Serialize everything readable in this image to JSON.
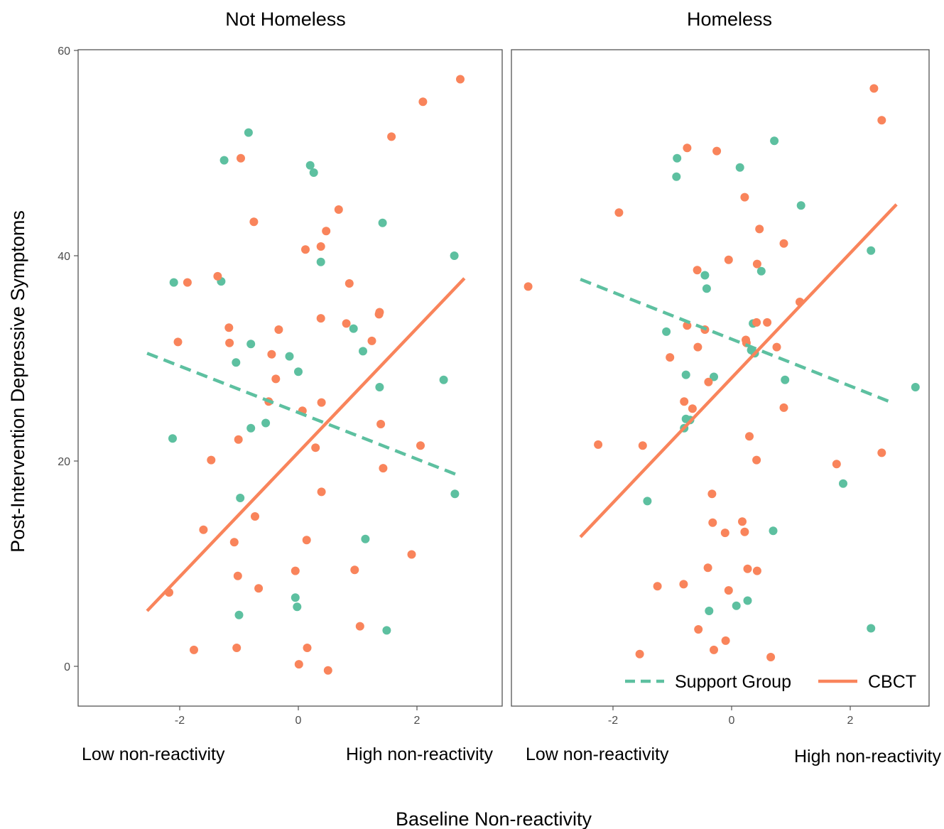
{
  "figure": {
    "ylabel": "Post-Intervention  Depressive Symptoms",
    "xlabel": "Baseline Non-reactivity"
  },
  "colors": {
    "support_group": "#5dc0a0",
    "cbct": "#f9845b"
  },
  "legend": {
    "items": [
      "Support Group",
      "CBCT"
    ],
    "position": "bottom-right (inside Homeless panel)"
  },
  "chart_data": [
    {
      "type": "scatter",
      "panel": "Not Homeless",
      "title": "Not Homeless",
      "xlim": [
        -3.7,
        3.3
      ],
      "ylim": [
        -3.5,
        60.2
      ],
      "xticks": [
        -2,
        0,
        2
      ],
      "xtick_labels": [
        "-2",
        "0",
        "2"
      ],
      "yticks": [
        0,
        20,
        40,
        60
      ],
      "ytick_labels": [
        "0",
        "20",
        "40",
        "60"
      ],
      "x_annotations": [
        "Low non-reactivity",
        "High non-reactivity"
      ],
      "grid": false,
      "series": [
        {
          "name": "Support Group",
          "points": [
            [
              -0.84,
              52.0
            ],
            [
              -1.25,
              49.3
            ],
            [
              0.2,
              48.8
            ],
            [
              0.26,
              48.1
            ],
            [
              1.42,
              43.2
            ],
            [
              2.63,
              40.0
            ],
            [
              0.38,
              39.4
            ],
            [
              -2.1,
              37.4
            ],
            [
              -1.3,
              37.5
            ],
            [
              0.93,
              32.9
            ],
            [
              -0.8,
              31.4
            ],
            [
              1.09,
              30.7
            ],
            [
              -0.15,
              30.2
            ],
            [
              -1.05,
              29.6
            ],
            [
              0.0,
              28.7
            ],
            [
              2.45,
              27.9
            ],
            [
              1.37,
              27.2
            ],
            [
              -0.55,
              23.7
            ],
            [
              -0.8,
              23.2
            ],
            [
              -2.12,
              22.2
            ],
            [
              -0.98,
              16.4
            ],
            [
              2.64,
              16.8
            ],
            [
              1.13,
              12.4
            ],
            [
              -0.05,
              6.7
            ],
            [
              -0.02,
              5.8
            ],
            [
              -1.0,
              5.0
            ],
            [
              1.49,
              3.5
            ]
          ],
          "trend": {
            "style": "dashed",
            "x": [
              -2.55,
              2.7
            ],
            "y": [
              30.5,
              18.6
            ]
          }
        },
        {
          "name": "CBCT",
          "points": [
            [
              2.73,
              57.2
            ],
            [
              2.1,
              55.0
            ],
            [
              1.57,
              51.6
            ],
            [
              -0.97,
              49.5
            ],
            [
              0.68,
              44.5
            ],
            [
              -0.75,
              43.3
            ],
            [
              0.47,
              42.4
            ],
            [
              0.12,
              40.6
            ],
            [
              0.38,
              40.9
            ],
            [
              -1.36,
              38.0
            ],
            [
              -1.87,
              37.4
            ],
            [
              0.86,
              37.3
            ],
            [
              1.37,
              34.5
            ],
            [
              1.36,
              34.3
            ],
            [
              0.38,
              33.9
            ],
            [
              0.81,
              33.4
            ],
            [
              -1.17,
              33.0
            ],
            [
              -0.33,
              32.8
            ],
            [
              1.24,
              31.7
            ],
            [
              -2.03,
              31.6
            ],
            [
              -1.16,
              31.5
            ],
            [
              -0.45,
              30.4
            ],
            [
              -0.38,
              28.0
            ],
            [
              -0.5,
              25.8
            ],
            [
              0.39,
              25.7
            ],
            [
              0.07,
              24.9
            ],
            [
              1.39,
              23.6
            ],
            [
              -1.01,
              22.1
            ],
            [
              0.29,
              21.3
            ],
            [
              2.06,
              21.5
            ],
            [
              -1.47,
              20.1
            ],
            [
              1.43,
              19.3
            ],
            [
              0.39,
              17.0
            ],
            [
              -0.73,
              14.6
            ],
            [
              -1.6,
              13.3
            ],
            [
              -1.08,
              12.1
            ],
            [
              0.14,
              12.3
            ],
            [
              1.91,
              10.9
            ],
            [
              -1.02,
              8.8
            ],
            [
              -0.05,
              9.3
            ],
            [
              0.95,
              9.4
            ],
            [
              -0.67,
              7.6
            ],
            [
              -2.18,
              7.2
            ],
            [
              1.04,
              3.9
            ],
            [
              -1.76,
              1.6
            ],
            [
              -1.04,
              1.8
            ],
            [
              0.15,
              1.8
            ],
            [
              0.01,
              0.2
            ],
            [
              0.5,
              -0.4
            ]
          ],
          "trend": {
            "style": "solid",
            "x": [
              -2.55,
              2.8
            ],
            "y": [
              5.4,
              37.8
            ]
          }
        }
      ]
    },
    {
      "type": "scatter",
      "panel": "Homeless",
      "title": "Homeless",
      "xlim": [
        -3.7,
        3.3
      ],
      "ylim": [
        -3.5,
        60.2
      ],
      "xticks": [
        -2,
        0,
        2
      ],
      "xtick_labels": [
        "-2",
        "0",
        "2"
      ],
      "yticks": [
        0,
        20,
        40,
        60
      ],
      "x_annotations": [
        "Low non-reactivity",
        "High non-reactivity"
      ],
      "grid": false,
      "series": [
        {
          "name": "Support Group",
          "points": [
            [
              0.72,
              51.2
            ],
            [
              -0.92,
              49.5
            ],
            [
              -0.93,
              47.7
            ],
            [
              0.14,
              48.6
            ],
            [
              1.17,
              44.9
            ],
            [
              2.35,
              40.5
            ],
            [
              0.5,
              38.5
            ],
            [
              -0.45,
              38.1
            ],
            [
              -0.42,
              36.8
            ],
            [
              0.36,
              33.4
            ],
            [
              -1.1,
              32.6
            ],
            [
              0.33,
              30.8
            ],
            [
              0.39,
              30.5
            ],
            [
              -0.77,
              28.4
            ],
            [
              -0.3,
              28.2
            ],
            [
              0.9,
              27.9
            ],
            [
              3.1,
              27.2
            ],
            [
              -0.7,
              24.0
            ],
            [
              -0.77,
              24.1
            ],
            [
              -0.8,
              23.2
            ],
            [
              1.88,
              17.8
            ],
            [
              -1.42,
              16.1
            ],
            [
              0.7,
              13.2
            ],
            [
              0.27,
              6.4
            ],
            [
              -0.38,
              5.4
            ],
            [
              0.08,
              5.9
            ],
            [
              2.35,
              3.7
            ]
          ],
          "trend": {
            "style": "dashed",
            "x": [
              -2.55,
              2.7
            ],
            "y": [
              37.7,
              25.7
            ]
          }
        },
        {
          "name": "CBCT",
          "points": [
            [
              2.4,
              56.3
            ],
            [
              2.53,
              53.2
            ],
            [
              -0.75,
              50.5
            ],
            [
              -0.25,
              50.2
            ],
            [
              0.22,
              45.7
            ],
            [
              -1.9,
              44.2
            ],
            [
              0.47,
              42.6
            ],
            [
              0.88,
              41.2
            ],
            [
              -0.05,
              39.6
            ],
            [
              0.43,
              39.2
            ],
            [
              -0.58,
              38.6
            ],
            [
              -3.43,
              37.0
            ],
            [
              1.15,
              35.5
            ],
            [
              0.42,
              33.5
            ],
            [
              0.6,
              33.5
            ],
            [
              -0.75,
              33.2
            ],
            [
              -0.45,
              32.8
            ],
            [
              0.24,
              31.8
            ],
            [
              0.25,
              31.5
            ],
            [
              -0.57,
              31.1
            ],
            [
              0.76,
              31.1
            ],
            [
              -1.04,
              30.1
            ],
            [
              -0.39,
              27.7
            ],
            [
              -0.8,
              25.8
            ],
            [
              -0.66,
              25.1
            ],
            [
              0.88,
              25.2
            ],
            [
              0.3,
              22.4
            ],
            [
              -2.25,
              21.6
            ],
            [
              -1.5,
              21.5
            ],
            [
              2.53,
              20.8
            ],
            [
              0.42,
              20.1
            ],
            [
              1.77,
              19.7
            ],
            [
              -0.33,
              16.8
            ],
            [
              -0.32,
              14.0
            ],
            [
              0.18,
              14.1
            ],
            [
              -0.11,
              13.0
            ],
            [
              0.22,
              13.1
            ],
            [
              -0.4,
              9.6
            ],
            [
              0.27,
              9.5
            ],
            [
              0.43,
              9.3
            ],
            [
              -1.25,
              7.8
            ],
            [
              -0.81,
              8.0
            ],
            [
              -0.05,
              7.4
            ],
            [
              -0.56,
              3.6
            ],
            [
              -0.1,
              2.5
            ],
            [
              -0.3,
              1.6
            ],
            [
              -1.55,
              1.2
            ],
            [
              0.66,
              0.9
            ]
          ],
          "trend": {
            "style": "solid",
            "x": [
              -2.55,
              2.78
            ],
            "y": [
              12.6,
              45.0
            ]
          }
        }
      ]
    }
  ]
}
